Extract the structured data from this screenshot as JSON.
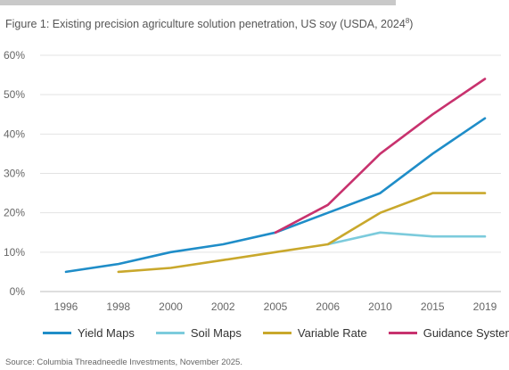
{
  "figure": {
    "title_prefix": "Figure 1: Existing precision agriculture solution penetration, US soy (USDA, 2024",
    "title_sup": "8",
    "title_suffix": ")",
    "source": "Source: Columbia Threadneedle Investments, November 2025."
  },
  "chart_data": {
    "type": "line",
    "categories": [
      "1996",
      "1998",
      "2000",
      "2002",
      "2005",
      "2006",
      "2010",
      "2015",
      "2019"
    ],
    "y_ticks": [
      "0%",
      "10%",
      "20%",
      "30%",
      "40%",
      "50%",
      "60%"
    ],
    "ylim": [
      0,
      60
    ],
    "y_unit": "%",
    "grid": true,
    "legend_position": "bottom",
    "series": [
      {
        "name": "Yield Maps",
        "color": "#1f8dc8",
        "values": [
          5,
          7,
          10,
          12,
          15,
          20,
          25,
          35,
          44
        ]
      },
      {
        "name": "Soil Maps",
        "color": "#7ccbdc",
        "values": [
          null,
          null,
          null,
          null,
          null,
          12,
          15,
          14,
          14
        ]
      },
      {
        "name": "Variable Rate",
        "color": "#c9a82c",
        "values": [
          null,
          5,
          6,
          8,
          10,
          12,
          20,
          25,
          25
        ]
      },
      {
        "name": "Guidance Systems",
        "color": "#c8326e",
        "values": [
          null,
          null,
          null,
          null,
          15,
          22,
          35,
          45,
          54
        ]
      }
    ]
  }
}
